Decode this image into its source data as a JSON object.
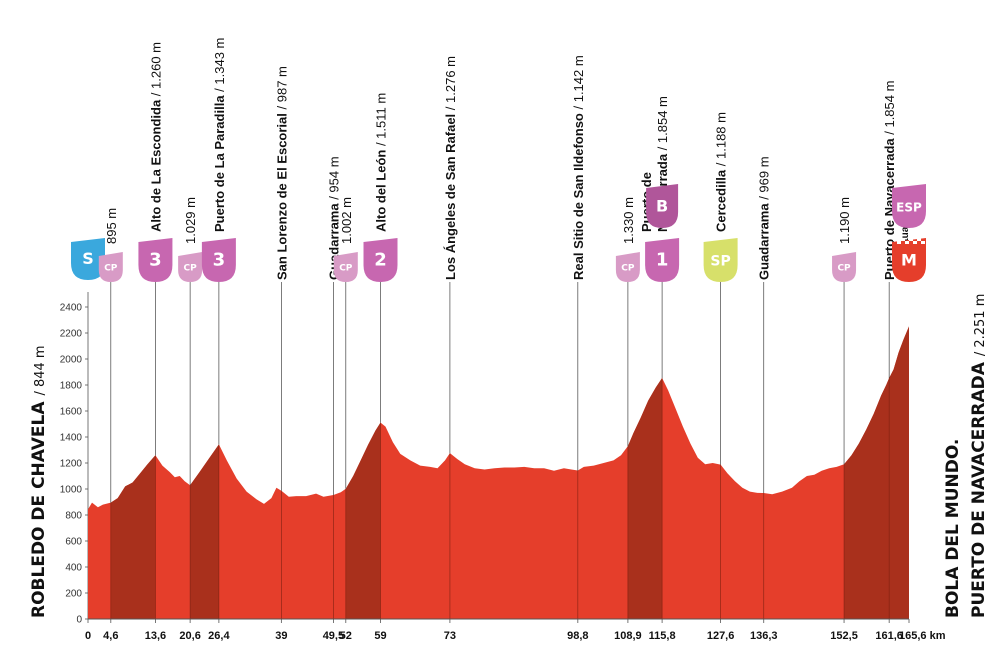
{
  "chart_data": {
    "type": "area",
    "ylim": [
      0,
      2500
    ],
    "yticks": [
      0,
      200,
      400,
      600,
      800,
      1000,
      1200,
      1400,
      1600,
      1800,
      2000,
      2200,
      2400
    ],
    "xlim": [
      0,
      165.6
    ],
    "x_tick_labels": [
      {
        "x": 0,
        "label": "0"
      },
      {
        "x": 4.6,
        "label": "4,6"
      },
      {
        "x": 13.6,
        "label": "13,6"
      },
      {
        "x": 20.6,
        "label": "20,6"
      },
      {
        "x": 26.4,
        "label": "26,4"
      },
      {
        "x": 39,
        "label": "39"
      },
      {
        "x": 49.5,
        "label": "49,5"
      },
      {
        "x": 52,
        "label": "52"
      },
      {
        "x": 59,
        "label": "59"
      },
      {
        "x": 73,
        "label": "73"
      },
      {
        "x": 98.8,
        "label": "98,8"
      },
      {
        "x": 108.9,
        "label": "108,9"
      },
      {
        "x": 115.8,
        "label": "115,8"
      },
      {
        "x": 127.6,
        "label": "127,6"
      },
      {
        "x": 136.3,
        "label": "136,3"
      },
      {
        "x": 152.5,
        "label": "152,5"
      },
      {
        "x": 161.6,
        "label": "161,6"
      },
      {
        "x": 165.6,
        "label": "165,6 km"
      }
    ],
    "profile": {
      "x": [
        0,
        0.8,
        2,
        3,
        4.6,
        6,
        7.5,
        9,
        10.5,
        12,
        13.6,
        15,
        16.5,
        17.5,
        18.5,
        19.5,
        20.6,
        22.5,
        24.5,
        26.4,
        28,
        30,
        32,
        34,
        35.5,
        37,
        38,
        39,
        40.5,
        42,
        44,
        46,
        47.5,
        49.5,
        51,
        52,
        53.5,
        55,
        56.5,
        58,
        59,
        60,
        61.5,
        63,
        65,
        67,
        69,
        70.5,
        72,
        73,
        74.5,
        76,
        78,
        80,
        82,
        84,
        86,
        88,
        90,
        92,
        94,
        96,
        97.5,
        98.8,
        100,
        102,
        104,
        106,
        107.5,
        108.9,
        110,
        111.5,
        113,
        114.5,
        115.8,
        117,
        118.5,
        120,
        121.5,
        123,
        124.5,
        126,
        127.6,
        129,
        130.5,
        132,
        133.5,
        135,
        136.3,
        138,
        140,
        142,
        143.5,
        145,
        146.5,
        148,
        149.5,
        151,
        152.5,
        154,
        155.5,
        157,
        158.5,
        160,
        161,
        161.6,
        162.5,
        163.5,
        164.5,
        165.6
      ],
      "y": [
        844,
        895,
        860,
        880,
        895,
        930,
        1020,
        1050,
        1120,
        1190,
        1260,
        1180,
        1130,
        1090,
        1100,
        1060,
        1029,
        1130,
        1240,
        1343,
        1220,
        1080,
        980,
        920,
        885,
        930,
        1010,
        987,
        940,
        945,
        945,
        965,
        940,
        954,
        975,
        1002,
        1100,
        1220,
        1340,
        1450,
        1511,
        1480,
        1360,
        1270,
        1220,
        1180,
        1170,
        1160,
        1220,
        1276,
        1230,
        1190,
        1160,
        1150,
        1160,
        1165,
        1165,
        1170,
        1160,
        1160,
        1140,
        1160,
        1150,
        1142,
        1170,
        1180,
        1200,
        1220,
        1260,
        1330,
        1430,
        1550,
        1680,
        1780,
        1854,
        1760,
        1620,
        1480,
        1350,
        1240,
        1190,
        1200,
        1188,
        1120,
        1060,
        1010,
        980,
        970,
        969,
        960,
        980,
        1010,
        1060,
        1100,
        1110,
        1140,
        1160,
        1170,
        1190,
        1260,
        1350,
        1460,
        1580,
        1720,
        1800,
        1854,
        1920,
        2050,
        2150,
        2251
      ]
    },
    "climb_segments": [
      {
        "x0": 4.6,
        "x1": 13.6
      },
      {
        "x0": 20.6,
        "x1": 26.4
      },
      {
        "x0": 52,
        "x1": 59
      },
      {
        "x0": 108.9,
        "x1": 115.8
      },
      {
        "x0": 152.5,
        "x1": 161.6
      },
      {
        "x0": 161.6,
        "x1": 165.6
      }
    ],
    "landmarks": [
      {
        "km": 13.6,
        "name": "Alto de La Escondida",
        "alt": "1.260 m",
        "note": "",
        "badge": "3",
        "badge_color": "#c767b0"
      },
      {
        "km": 26.4,
        "name": "Puerto de La Paradilla",
        "alt": "1.343 m",
        "note": "",
        "badge": "3",
        "badge_color": "#c767b0"
      },
      {
        "km": 39,
        "name": "San Lorenzo de El Escorial",
        "alt": "987 m",
        "note": "",
        "badge": "",
        "badge_color": ""
      },
      {
        "km": 49.5,
        "name": "Guadarrama",
        "alt": "954 m",
        "note": "",
        "badge": "",
        "badge_color": ""
      },
      {
        "km": 59,
        "name": "Alto del León",
        "alt": "1.511 m",
        "note": "",
        "badge": "2",
        "badge_color": "#c767b0"
      },
      {
        "km": 73,
        "name": "Los Ángeles de San Rafael",
        "alt": "1.276 m",
        "note": "",
        "badge": "",
        "badge_color": ""
      },
      {
        "km": 98.8,
        "name": "Real Sitio de San Ildefonso",
        "alt": "1.142 m",
        "note": "",
        "badge": "",
        "badge_color": ""
      },
      {
        "km": 115.8,
        "name": "Navacerrada",
        "name_line1": "Puerto de",
        "alt": "1.854 m",
        "note": "",
        "badge": "1",
        "badge_color": "#c767b0"
      },
      {
        "km": 127.6,
        "name": "Cercedilla",
        "alt": "1.188 m",
        "note": "",
        "badge": "SP",
        "badge_color": "#d7e06a"
      },
      {
        "km": 136.3,
        "name": "Guadarrama",
        "alt": "969 m",
        "note": "",
        "badge": "",
        "badge_color": ""
      },
      {
        "km": 161.6,
        "name": "Puerto de Navacerrada",
        "alt": "1.854 m",
        "note": "(No Puntuable)",
        "badge": "",
        "badge_color": ""
      }
    ],
    "checkpoints": [
      {
        "km": 4.6,
        "alt": "895 m"
      },
      {
        "km": 20.6,
        "alt": "1.029 m"
      },
      {
        "km": 52,
        "alt": "1.002 m"
      },
      {
        "km": 108.9,
        "alt": "1.330 m"
      },
      {
        "km": 152.5,
        "alt": "1.190 m"
      }
    ],
    "extra_badges": {
      "start": "S",
      "cp": "CP",
      "bonus": "B",
      "esp": "ESP",
      "finish": "M"
    },
    "start_label": {
      "name": "ROBLEDO DE CHAVELA",
      "alt": "844 m"
    },
    "finish_label": {
      "line1": "BOLA DEL MUNDO.",
      "line2": "PUERTO DE NAVACERRADA",
      "alt": "2.251 m"
    }
  },
  "colors": {
    "profile": "#e53e2b",
    "climb": "#a9301c",
    "axis": "#555555",
    "cp": "#d89bc6",
    "start": "#3aa8dd",
    "finish": "#e53e2b",
    "esp": "#c767b0",
    "bonus": "#b0569a"
  }
}
